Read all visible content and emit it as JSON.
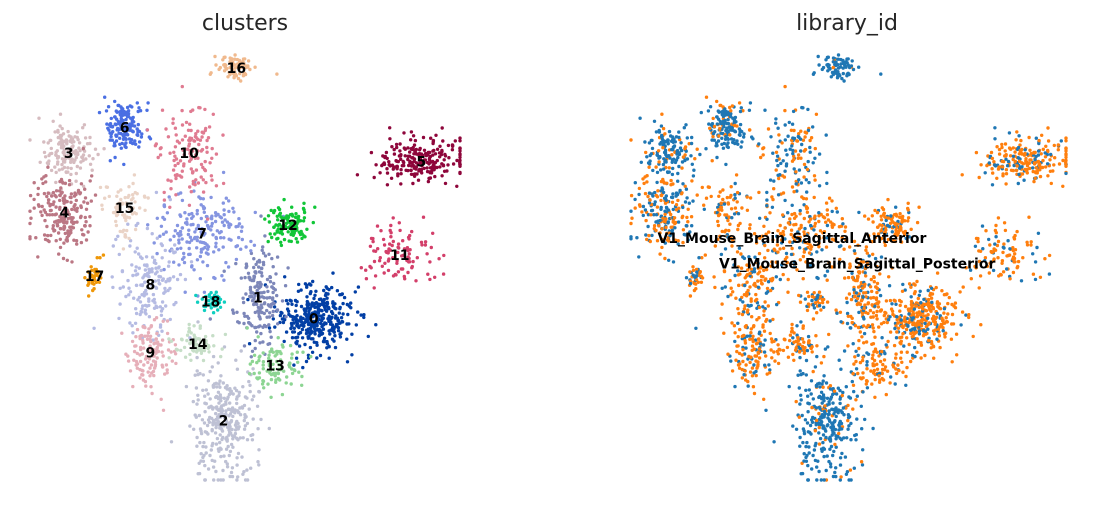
{
  "chart_data": [
    {
      "type": "scatter",
      "title": "clusters",
      "legend": "on data",
      "grid": false,
      "clusters": [
        {
          "name": "0",
          "color": "#023fa5",
          "center": [
            0.66,
            0.38
          ],
          "spread": [
            0.08,
            0.07
          ],
          "count": 340
        },
        {
          "name": "1",
          "color": "#7d87b9",
          "center": [
            0.53,
            0.43
          ],
          "spread": [
            0.05,
            0.11
          ],
          "count": 180
        },
        {
          "name": "2",
          "color": "#bec1d4",
          "center": [
            0.45,
            0.14
          ],
          "spread": [
            0.07,
            0.12
          ],
          "count": 300
        },
        {
          "name": "3",
          "color": "#d6bcc0",
          "center": [
            0.09,
            0.77
          ],
          "spread": [
            0.06,
            0.06
          ],
          "count": 150
        },
        {
          "name": "4",
          "color": "#bb7784",
          "center": [
            0.08,
            0.63
          ],
          "spread": [
            0.06,
            0.08
          ],
          "count": 200
        },
        {
          "name": "5",
          "color": "#8e063b",
          "center": [
            0.91,
            0.75
          ],
          "spread": [
            0.09,
            0.05
          ],
          "count": 230
        },
        {
          "name": "6",
          "color": "#4a6fe3",
          "center": [
            0.22,
            0.83
          ],
          "spread": [
            0.04,
            0.06
          ],
          "count": 160
        },
        {
          "name": "7",
          "color": "#8595e1",
          "center": [
            0.4,
            0.58
          ],
          "spread": [
            0.09,
            0.09
          ],
          "count": 190
        },
        {
          "name": "8",
          "color": "#b5bbe3",
          "center": [
            0.28,
            0.46
          ],
          "spread": [
            0.07,
            0.11
          ],
          "count": 170
        },
        {
          "name": "9",
          "color": "#e6afb9",
          "center": [
            0.28,
            0.3
          ],
          "spread": [
            0.05,
            0.08
          ],
          "count": 120
        },
        {
          "name": "10",
          "color": "#e07b91",
          "center": [
            0.37,
            0.77
          ],
          "spread": [
            0.06,
            0.11
          ],
          "count": 130
        },
        {
          "name": "11",
          "color": "#d33f6a",
          "center": [
            0.86,
            0.53
          ],
          "spread": [
            0.08,
            0.06
          ],
          "count": 100
        },
        {
          "name": "12",
          "color": "#11c638",
          "center": [
            0.6,
            0.6
          ],
          "spread": [
            0.05,
            0.04
          ],
          "count": 110
        },
        {
          "name": "13",
          "color": "#8dd593",
          "center": [
            0.57,
            0.27
          ],
          "spread": [
            0.05,
            0.05
          ],
          "count": 90
        },
        {
          "name": "14",
          "color": "#c6dec7",
          "center": [
            0.39,
            0.32
          ],
          "spread": [
            0.05,
            0.03
          ],
          "count": 70
        },
        {
          "name": "15",
          "color": "#ead3c6",
          "center": [
            0.22,
            0.64
          ],
          "spread": [
            0.04,
            0.06
          ],
          "count": 70
        },
        {
          "name": "16",
          "color": "#f0b98d",
          "center": [
            0.48,
            0.97
          ],
          "spread": [
            0.04,
            0.03
          ],
          "count": 70
        },
        {
          "name": "17",
          "color": "#ef9708",
          "center": [
            0.15,
            0.48
          ],
          "spread": [
            0.02,
            0.04
          ],
          "count": 40
        },
        {
          "name": "18",
          "color": "#0fcfc0",
          "center": [
            0.42,
            0.42
          ],
          "spread": [
            0.03,
            0.02
          ],
          "count": 40
        }
      ]
    },
    {
      "type": "scatter",
      "title": "library_id",
      "legend": "on data",
      "grid": false,
      "categories": [
        {
          "name": "V1_Mouse_Brain_Sagittal_Anterior",
          "color": "#1f77b4",
          "label_center": [
            0.37,
            0.57
          ]
        },
        {
          "name": "V1_Mouse_Brain_Sagittal_Posterior",
          "color": "#ff7f0e",
          "label_center": [
            0.52,
            0.51
          ]
        }
      ]
    }
  ]
}
